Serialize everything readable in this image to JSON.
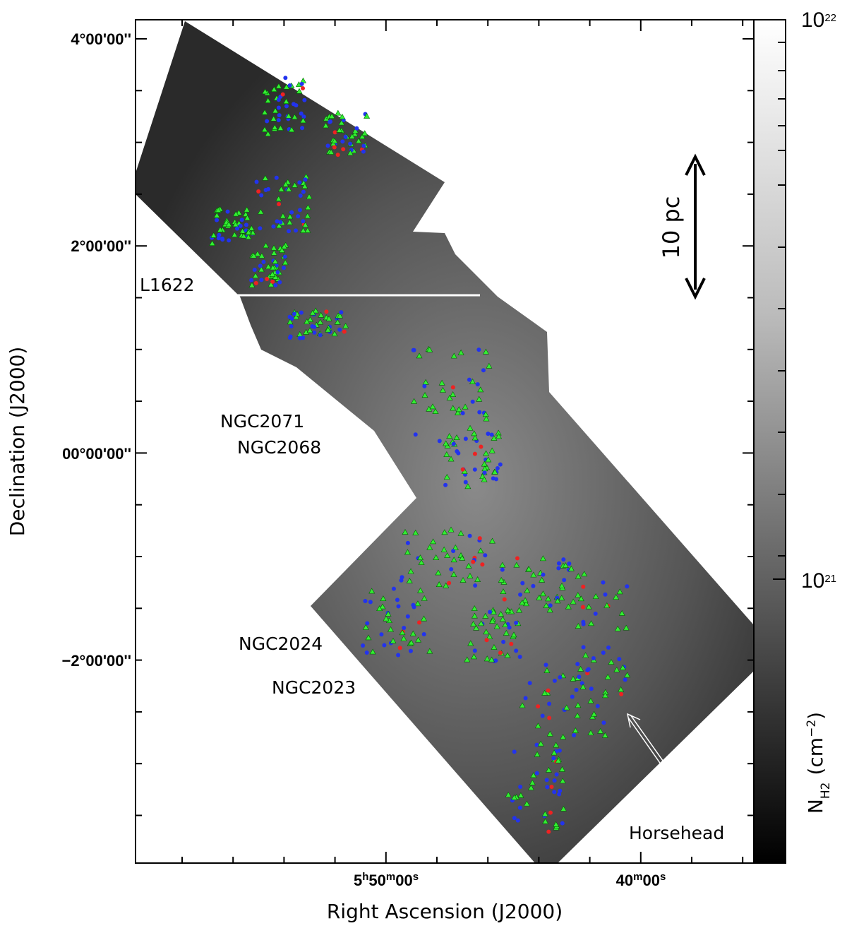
{
  "figure": {
    "x_axis": {
      "label": "Right Ascension (J2000)",
      "ticks": [
        [
          "5",
          "h",
          "50",
          "m",
          "00",
          "s"
        ],
        [
          "40",
          "m",
          "00",
          "s"
        ]
      ]
    },
    "y_axis": {
      "label": "Declination (J2000)",
      "ticks": [
        "4°00'00''",
        "2°00'00''",
        "00°00'00''",
        "−2°00'00''"
      ]
    },
    "colorbar": {
      "ticks": [
        [
          "10",
          "22"
        ],
        [
          "10",
          "21"
        ]
      ],
      "label": [
        "N",
        "H2",
        "(cm",
        "−2",
        ")"
      ]
    },
    "annotations": {
      "l1622": "L1622",
      "ngc2071": "NGC2071",
      "ngc2068": "NGC2068",
      "ngc2024": "NGC2024",
      "ngc2023": "NGC2023",
      "horsehead": "Horsehead",
      "scale": "10 pc"
    }
  }
}
